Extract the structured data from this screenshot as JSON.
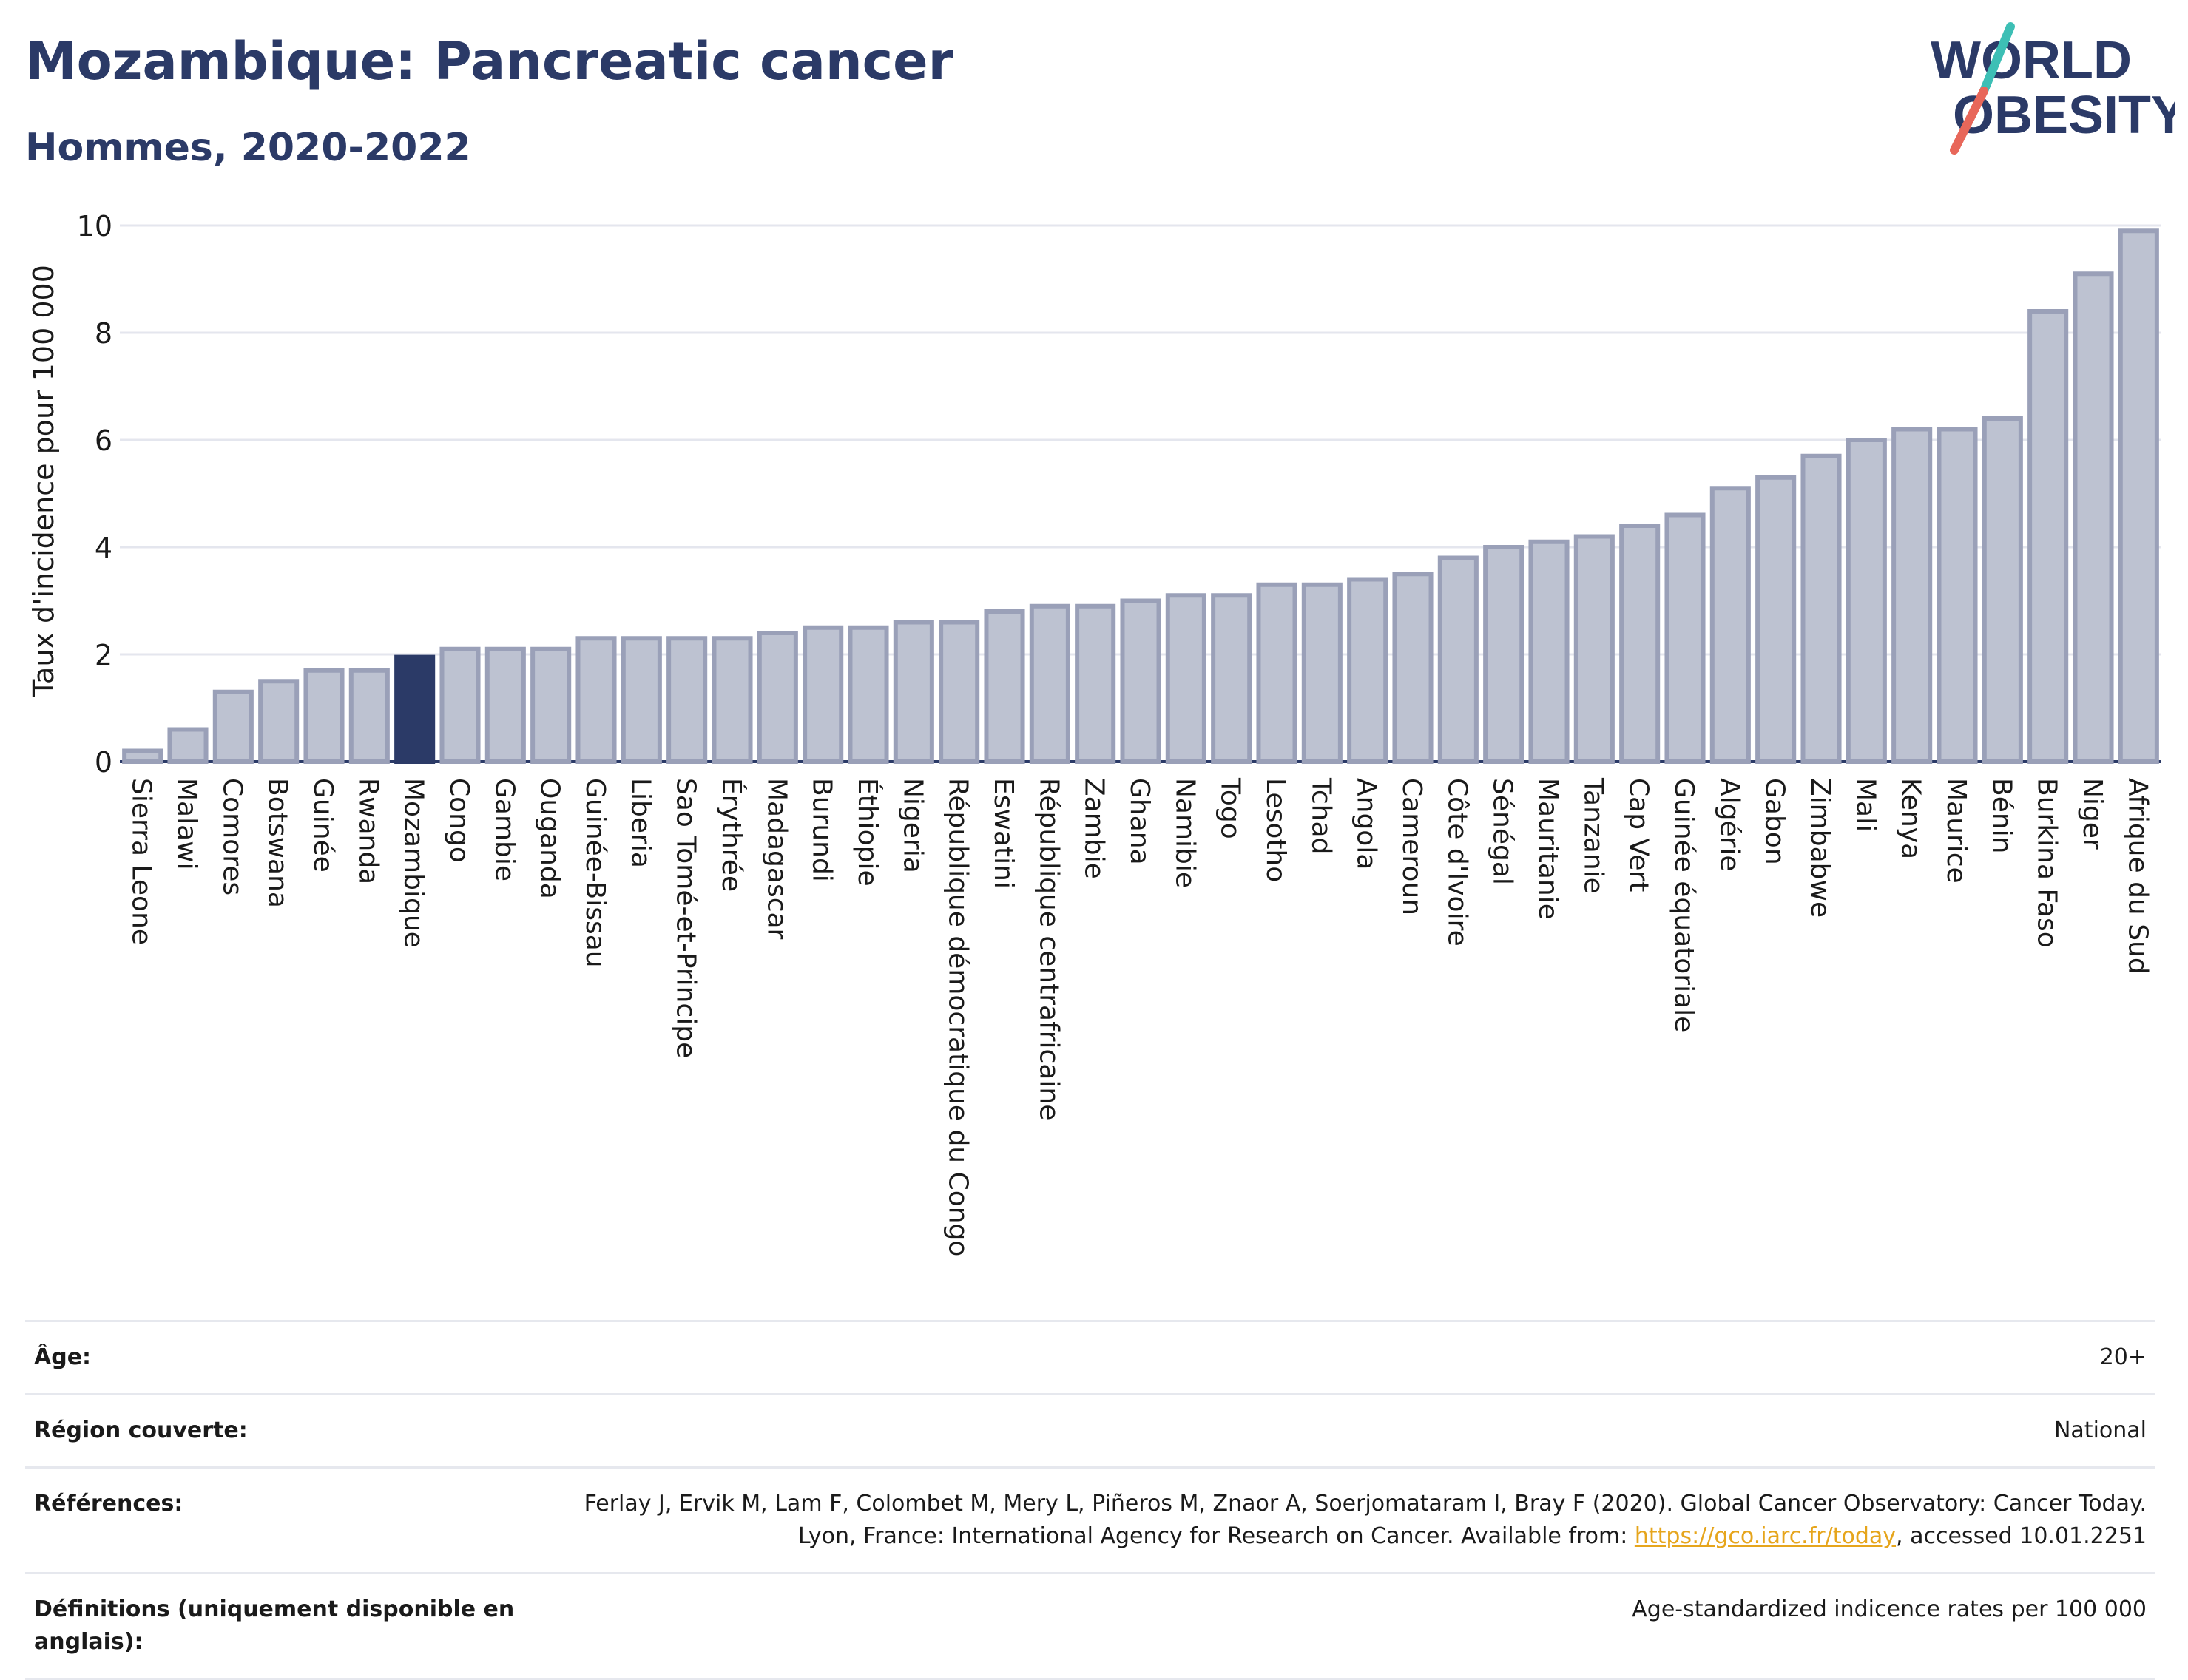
{
  "header": {
    "title": "Mozambique: Pancreatic cancer",
    "subtitle": "Hommes, 2020-2022",
    "logo_line1": "WORLD",
    "logo_line2": "OBESITY"
  },
  "colors": {
    "title": "#2b3a67",
    "bar_default": "#bdc2d1",
    "bar_stroke": "#9aa0b8",
    "bar_highlight": "#2b3a67",
    "logo_slash_top": "#3dbfb5",
    "logo_slash_bottom": "#e8675a",
    "link": "#e6a51c"
  },
  "chart_data": {
    "type": "bar",
    "title": "Mozambique: Pancreatic cancer",
    "subtitle": "Hommes, 2020-2022",
    "ylabel": "Taux d'incidence pour 100 000",
    "xlabel": "",
    "ylim": [
      0,
      10
    ],
    "yticks": [
      0,
      2,
      4,
      6,
      8,
      10
    ],
    "grid": true,
    "highlight": "Mozambique",
    "categories": [
      "Sierra Leone",
      "Malawi",
      "Comores",
      "Botswana",
      "Guinée",
      "Rwanda",
      "Mozambique",
      "Congo",
      "Gambie",
      "Ouganda",
      "Guinée-Bissau",
      "Liberia",
      "Sao Tomé-et-Principe",
      "Érythrée",
      "Madagascar",
      "Burundi",
      "Éthiopie",
      "Nigeria",
      "République démocratique du Congo",
      "Eswatini",
      "République centrafricaine",
      "Zambie",
      "Ghana",
      "Namibie",
      "Togo",
      "Lesotho",
      "Tchad",
      "Angola",
      "Cameroun",
      "Côte d'Ivoire",
      "Sénégal",
      "Mauritanie",
      "Tanzanie",
      "Cap Vert",
      "Guinée équatoriale",
      "Algérie",
      "Gabon",
      "Zimbabwe",
      "Mali",
      "Kenya",
      "Maurice",
      "Bénin",
      "Burkina Faso",
      "Niger",
      "Afrique du Sud"
    ],
    "values": [
      0.2,
      0.6,
      1.3,
      1.5,
      1.7,
      1.7,
      1.95,
      2.1,
      2.1,
      2.1,
      2.3,
      2.3,
      2.3,
      2.3,
      2.4,
      2.5,
      2.5,
      2.6,
      2.6,
      2.8,
      2.9,
      2.9,
      3.0,
      3.1,
      3.1,
      3.3,
      3.3,
      3.4,
      3.5,
      3.8,
      4.0,
      4.1,
      4.2,
      4.4,
      4.6,
      5.1,
      5.3,
      5.7,
      6.0,
      6.2,
      6.2,
      6.4,
      8.4,
      9.1,
      9.9
    ]
  },
  "info": [
    {
      "key": "Âge:",
      "value": "20+"
    },
    {
      "key": "Région couverte:",
      "value": "National"
    },
    {
      "key": "Références:",
      "value_pre": "Ferlay J, Ervik M, Lam F, Colombet M, Mery L, Piñeros M, Znaor A, Soerjomataram I, Bray F (2020). Global Cancer Observatory: Cancer Today. Lyon, France: International Agency for Research on Cancer. Available from: ",
      "link": "https://gco.iarc.fr/today",
      "value_post": ", accessed 10.01.2251"
    },
    {
      "key": "Définitions (uniquement disponible en anglais):",
      "value": "Age-standardized indicence rates per 100 000"
    }
  ]
}
